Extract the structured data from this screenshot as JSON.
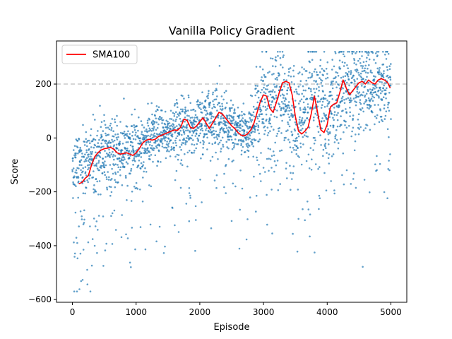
{
  "chart_data": {
    "type": "scatter",
    "title": "Vanilla Policy Gradient",
    "xlabel": "Episode",
    "ylabel": "Score",
    "xlim": [
      -250,
      5250
    ],
    "ylim": [
      -610,
      360
    ],
    "x_ticks": [
      0,
      1000,
      2000,
      3000,
      4000,
      5000
    ],
    "y_ticks": [
      -600,
      -400,
      -200,
      0,
      200
    ],
    "x_tick_labels": [
      "0",
      "1000",
      "2000",
      "3000",
      "4000",
      "5000"
    ],
    "y_tick_labels": [
      "−600",
      "−400",
      "−200",
      "0",
      "200"
    ],
    "reference_line": {
      "y": 200,
      "style": "dashed",
      "color": "#c8c8c8"
    },
    "grid": false,
    "legend": {
      "position": "upper-left",
      "entries": [
        "SMA100"
      ]
    },
    "scatter_color": "#1f77b4",
    "sma_color": "#ff0000",
    "series": [
      {
        "name": "SMA100",
        "kind": "line",
        "points": [
          [
            100,
            -170
          ],
          [
            150,
            -165
          ],
          [
            200,
            -150
          ],
          [
            250,
            -140
          ],
          [
            300,
            -100
          ],
          [
            350,
            -70
          ],
          [
            400,
            -55
          ],
          [
            450,
            -45
          ],
          [
            500,
            -40
          ],
          [
            550,
            -38
          ],
          [
            600,
            -35
          ],
          [
            650,
            -42
          ],
          [
            700,
            -55
          ],
          [
            750,
            -60
          ],
          [
            800,
            -58
          ],
          [
            850,
            -55
          ],
          [
            900,
            -60
          ],
          [
            950,
            -65
          ],
          [
            1000,
            -55
          ],
          [
            1050,
            -40
          ],
          [
            1100,
            -20
          ],
          [
            1150,
            -10
          ],
          [
            1200,
            -5
          ],
          [
            1250,
            -8
          ],
          [
            1300,
            -5
          ],
          [
            1350,
            5
          ],
          [
            1400,
            10
          ],
          [
            1450,
            15
          ],
          [
            1500,
            20
          ],
          [
            1550,
            25
          ],
          [
            1600,
            30
          ],
          [
            1650,
            28
          ],
          [
            1700,
            40
          ],
          [
            1750,
            70
          ],
          [
            1800,
            65
          ],
          [
            1850,
            40
          ],
          [
            1900,
            35
          ],
          [
            1950,
            45
          ],
          [
            2000,
            60
          ],
          [
            2050,
            75
          ],
          [
            2100,
            55
          ],
          [
            2150,
            35
          ],
          [
            2200,
            55
          ],
          [
            2250,
            75
          ],
          [
            2300,
            95
          ],
          [
            2350,
            90
          ],
          [
            2400,
            75
          ],
          [
            2450,
            60
          ],
          [
            2500,
            45
          ],
          [
            2550,
            35
          ],
          [
            2600,
            20
          ],
          [
            2650,
            10
          ],
          [
            2700,
            8
          ],
          [
            2750,
            15
          ],
          [
            2800,
            30
          ],
          [
            2850,
            55
          ],
          [
            2900,
            95
          ],
          [
            2950,
            135
          ],
          [
            3000,
            160
          ],
          [
            3050,
            155
          ],
          [
            3100,
            110
          ],
          [
            3150,
            95
          ],
          [
            3200,
            130
          ],
          [
            3250,
            170
          ],
          [
            3300,
            205
          ],
          [
            3350,
            210
          ],
          [
            3400,
            205
          ],
          [
            3450,
            160
          ],
          [
            3500,
            80
          ],
          [
            3550,
            25
          ],
          [
            3600,
            15
          ],
          [
            3650,
            25
          ],
          [
            3700,
            40
          ],
          [
            3750,
            90
          ],
          [
            3800,
            155
          ],
          [
            3850,
            95
          ],
          [
            3900,
            30
          ],
          [
            3950,
            20
          ],
          [
            4000,
            50
          ],
          [
            4050,
            115
          ],
          [
            4100,
            125
          ],
          [
            4150,
            130
          ],
          [
            4200,
            170
          ],
          [
            4250,
            215
          ],
          [
            4300,
            185
          ],
          [
            4350,
            160
          ],
          [
            4400,
            175
          ],
          [
            4450,
            190
          ],
          [
            4500,
            205
          ],
          [
            4550,
            210
          ],
          [
            4600,
            200
          ],
          [
            4650,
            215
          ],
          [
            4700,
            205
          ],
          [
            4750,
            200
          ],
          [
            4800,
            215
          ],
          [
            4850,
            220
          ],
          [
            4900,
            215
          ],
          [
            4950,
            205
          ],
          [
            4990,
            185
          ]
        ]
      }
    ],
    "scatter_envelope": [
      [
        0,
        -100,
        60
      ],
      [
        250,
        -90,
        60
      ],
      [
        500,
        -45,
        65
      ],
      [
        750,
        -55,
        60
      ],
      [
        1000,
        -35,
        60
      ],
      [
        1250,
        -5,
        50
      ],
      [
        1500,
        15,
        50
      ],
      [
        1750,
        45,
        55
      ],
      [
        2000,
        45,
        55
      ],
      [
        2250,
        80,
        60
      ],
      [
        2500,
        35,
        45
      ],
      [
        2750,
        15,
        40
      ],
      [
        3000,
        130,
        90
      ],
      [
        3250,
        160,
        90
      ],
      [
        3500,
        60,
        90
      ],
      [
        3750,
        110,
        110
      ],
      [
        4000,
        80,
        100
      ],
      [
        4250,
        180,
        90
      ],
      [
        4500,
        185,
        90
      ],
      [
        4750,
        195,
        85
      ],
      [
        5000,
        190,
        90
      ]
    ]
  }
}
